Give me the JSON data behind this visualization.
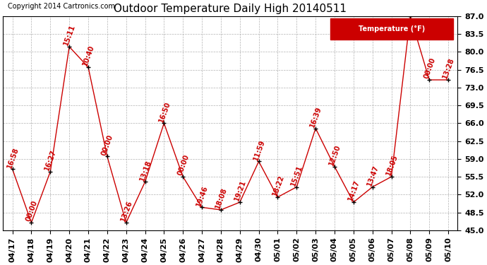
{
  "title": "Outdoor Temperature Daily High 20140511",
  "copyright": "Copyright 2014 Cartronics.com",
  "legend_label": "Temperature (°F)",
  "background_color": "#ffffff",
  "line_color": "#cc0000",
  "marker_color": "#000000",
  "dates": [
    "04/17",
    "04/18",
    "04/19",
    "04/20",
    "04/21",
    "04/22",
    "04/23",
    "04/24",
    "04/25",
    "04/26",
    "04/27",
    "04/28",
    "04/29",
    "04/30",
    "05/01",
    "05/02",
    "05/03",
    "05/04",
    "05/05",
    "05/06",
    "05/07",
    "05/08",
    "05/09",
    "05/10"
  ],
  "temps": [
    57.0,
    46.5,
    56.5,
    81.0,
    77.0,
    59.5,
    46.5,
    54.5,
    66.0,
    55.5,
    49.5,
    49.0,
    50.5,
    58.5,
    51.5,
    53.5,
    65.0,
    57.5,
    50.5,
    53.5,
    55.5,
    87.0,
    74.5,
    74.5
  ],
  "time_labels": [
    "16:58",
    "00:00",
    "16:27",
    "15:11",
    "10:40",
    "00:00",
    "13:26",
    "13:18",
    "16:50",
    "00:00",
    "19:46",
    "18:08",
    "19:21",
    "11:59",
    "18:22",
    "15:51",
    "16:39",
    "12:50",
    "14:17",
    "13:47",
    "18:05",
    "",
    "00:00",
    "13:28"
  ],
  "ylim": [
    45.0,
    87.0
  ],
  "yticks": [
    45.0,
    48.5,
    52.0,
    55.5,
    59.0,
    62.5,
    66.0,
    69.5,
    73.0,
    76.5,
    80.0,
    83.5,
    87.0
  ],
  "title_fontsize": 11,
  "label_fontsize": 7,
  "tick_fontsize": 8,
  "copyright_fontsize": 7
}
